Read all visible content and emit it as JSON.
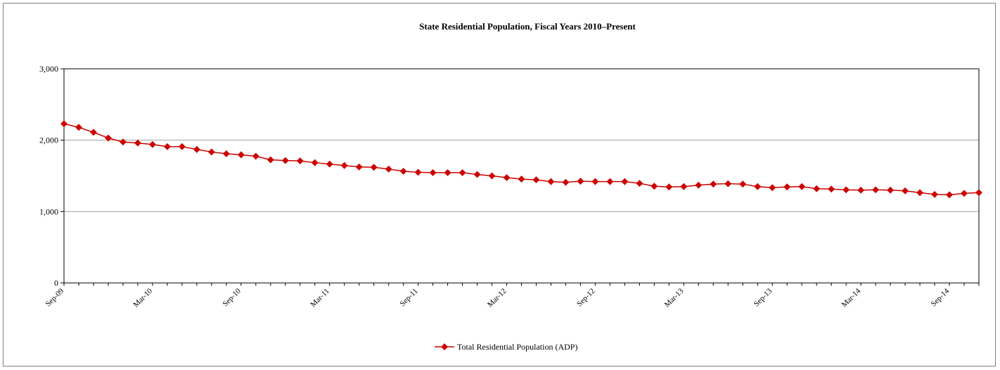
{
  "chart_data": {
    "type": "line",
    "title": "State Residential Population, Fiscal Years 2010–Present",
    "xlabel": "",
    "ylabel": "",
    "ylim": [
      0,
      3000
    ],
    "yticks": [
      0,
      1000,
      2000,
      3000
    ],
    "ytick_labels": [
      "0",
      "1,000",
      "2,000",
      "3,000"
    ],
    "xtick_labels": [
      "Sep-09",
      "Mar-10",
      "Sep-10",
      "Mar-11",
      "Sep-11",
      "Mar-12",
      "Sep-12",
      "Mar-13",
      "Sep-13",
      "Mar-14",
      "Sep-14"
    ],
    "grid": "horizontal",
    "legend_position": "bottom",
    "line_color": "#cc0000",
    "x": [
      "Sep-09",
      "Oct-09",
      "Nov-09",
      "Dec-09",
      "Jan-10",
      "Feb-10",
      "Mar-10",
      "Apr-10",
      "May-10",
      "Jun-10",
      "Jul-10",
      "Aug-10",
      "Sep-10",
      "Oct-10",
      "Nov-10",
      "Dec-10",
      "Jan-11",
      "Feb-11",
      "Mar-11",
      "Apr-11",
      "May-11",
      "Jun-11",
      "Jul-11",
      "Aug-11",
      "Sep-11",
      "Oct-11",
      "Nov-11",
      "Dec-11",
      "Jan-12",
      "Feb-12",
      "Mar-12",
      "Apr-12",
      "May-12",
      "Jun-12",
      "Jul-12",
      "Aug-12",
      "Sep-12",
      "Oct-12",
      "Nov-12",
      "Dec-12",
      "Jan-13",
      "Feb-13",
      "Mar-13",
      "Apr-13",
      "May-13",
      "Jun-13",
      "Jul-13",
      "Aug-13",
      "Sep-13",
      "Oct-13",
      "Nov-13",
      "Dec-13",
      "Jan-14",
      "Feb-14",
      "Mar-14",
      "Apr-14",
      "May-14",
      "Jun-14",
      "Jul-14",
      "Aug-14",
      "Sep-14",
      "Oct-14",
      "Nov-14"
    ],
    "series": [
      {
        "name": "Total Residential Population (ADP)",
        "values": [
          2230,
          2180,
          2110,
          2030,
          1975,
          1960,
          1940,
          1910,
          1910,
          1870,
          1835,
          1810,
          1795,
          1775,
          1725,
          1715,
          1710,
          1685,
          1665,
          1645,
          1625,
          1620,
          1595,
          1565,
          1550,
          1545,
          1545,
          1545,
          1520,
          1500,
          1475,
          1455,
          1445,
          1420,
          1410,
          1425,
          1420,
          1420,
          1420,
          1395,
          1355,
          1345,
          1350,
          1370,
          1385,
          1390,
          1385,
          1350,
          1335,
          1345,
          1350,
          1320,
          1315,
          1305,
          1300,
          1305,
          1300,
          1290,
          1265,
          1240,
          1235,
          1255,
          1265
        ]
      }
    ]
  }
}
